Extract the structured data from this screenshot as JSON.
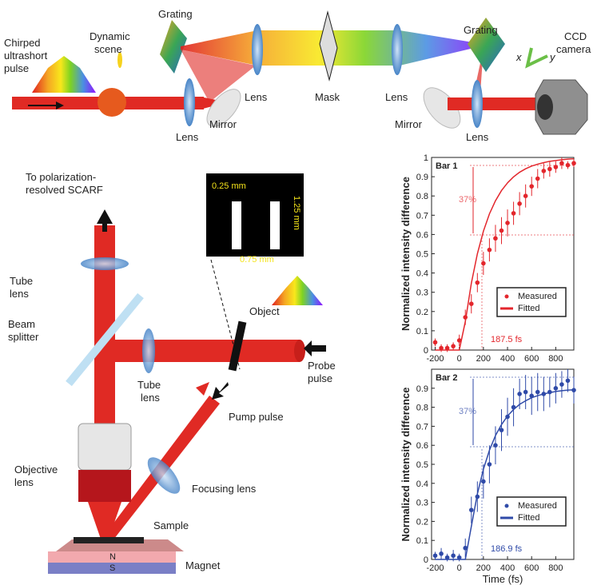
{
  "top_setup": {
    "labels": [
      "Grating",
      "Dynamic",
      "scene",
      "Chirped",
      "ultrashort",
      "pulse",
      "Lens",
      "Lens",
      "Mirror",
      "Mask",
      "Lens",
      "Grating",
      "Mirror",
      "Lens",
      "CCD",
      "camera",
      "x",
      "y"
    ]
  },
  "bottom_setup": {
    "labels": [
      "To polarization-",
      "resolved SCARF",
      "0.25 mm",
      "1.25 mm",
      "0.75 mm",
      "Tube",
      "lens",
      "Beam",
      "splitter",
      "Object",
      "Probe",
      "pulse",
      "Tube",
      "lens",
      "Pump pulse",
      "Objective",
      "lens",
      "Focusing lens",
      "Sample",
      "N",
      "S",
      "Magnet"
    ]
  },
  "chart_data": [
    {
      "type": "errorbar",
      "label": "Bar 1",
      "y_label": "Normalized intensity difference",
      "annotations": [
        "37%",
        "187.5 fs"
      ],
      "x": [
        -200,
        -150,
        -100,
        -50,
        0,
        50,
        100,
        150,
        200,
        250,
        300,
        350,
        400,
        450,
        500,
        550,
        600,
        650,
        700,
        750,
        800,
        850,
        900,
        950
      ],
      "series": [
        {
          "name": "Measured",
          "color": "#e3262c",
          "values": [
            0.04,
            0.01,
            0.01,
            0.02,
            0.05,
            0.17,
            0.24,
            0.35,
            0.45,
            0.52,
            0.58,
            0.62,
            0.66,
            0.71,
            0.76,
            0.8,
            0.85,
            0.89,
            0.93,
            0.94,
            0.95,
            0.97,
            0.96,
            0.97
          ],
          "errors": [
            0.02,
            0.02,
            0.02,
            0.02,
            0.03,
            0.04,
            0.05,
            0.05,
            0.06,
            0.06,
            0.07,
            0.07,
            0.07,
            0.06,
            0.06,
            0.06,
            0.05,
            0.05,
            0.04,
            0.04,
            0.03,
            0.03,
            0.02,
            0.02
          ]
        },
        {
          "name": "Fitted",
          "color": "#e3262c",
          "values": [
            0,
            0,
            0,
            0,
            0,
            0.148,
            0.347,
            0.5,
            0.617,
            0.707,
            0.775,
            0.828,
            0.868,
            0.899,
            0.923,
            0.941,
            0.955,
            0.965,
            0.973,
            0.98,
            0.984,
            0.988,
            0.991,
            0.993
          ]
        }
      ],
      "xlim": [
        -230,
        950
      ],
      "ylim": [
        0,
        1
      ],
      "xticks": [
        -200,
        0,
        200,
        400,
        600,
        800
      ],
      "yticks": [
        0,
        0.1,
        0.2,
        0.3,
        0.4,
        0.5,
        0.6,
        0.7,
        0.8,
        0.9,
        1
      ],
      "legend": "lower right"
    },
    {
      "type": "errorbar",
      "label": "Bar 2",
      "y_label": "Normalized intensity difference",
      "x_label": "Time (fs)",
      "annotations": [
        "37%",
        "186.9 fs"
      ],
      "x": [
        -200,
        -150,
        -100,
        -50,
        0,
        50,
        100,
        150,
        200,
        250,
        300,
        350,
        400,
        450,
        500,
        550,
        600,
        650,
        700,
        750,
        800,
        850,
        900,
        950
      ],
      "series": [
        {
          "name": "Measured",
          "color": "#2f4aa8",
          "values": [
            0.02,
            0.03,
            0.01,
            0.02,
            0.01,
            0.06,
            0.26,
            0.33,
            0.41,
            0.5,
            0.6,
            0.68,
            0.75,
            0.8,
            0.87,
            0.88,
            0.86,
            0.88,
            0.87,
            0.88,
            0.9,
            0.92,
            0.94,
            0.89
          ],
          "errors": [
            0.02,
            0.03,
            0.02,
            0.03,
            0.02,
            0.05,
            0.07,
            0.08,
            0.09,
            0.1,
            0.1,
            0.11,
            0.1,
            0.1,
            0.08,
            0.09,
            0.1,
            0.1,
            0.09,
            0.08,
            0.08,
            0.07,
            0.06,
            0.07
          ]
        },
        {
          "name": "Fitted",
          "color": "#2f4aa8",
          "values": [
            0,
            0,
            0,
            0,
            0,
            0,
            0.174,
            0.344,
            0.474,
            0.574,
            0.651,
            0.709,
            0.754,
            0.788,
            0.815,
            0.834,
            0.85,
            0.861,
            0.87,
            0.877,
            0.883,
            0.887,
            0.89,
            0.892
          ]
        }
      ],
      "xlim": [
        -230,
        950
      ],
      "ylim": [
        0,
        1
      ],
      "xticks": [
        -200,
        0,
        200,
        400,
        600,
        800
      ],
      "yticks": [
        0,
        0.1,
        0.2,
        0.3,
        0.4,
        0.5,
        0.6,
        0.7,
        0.8,
        0.9
      ],
      "legend": "lower right"
    }
  ]
}
